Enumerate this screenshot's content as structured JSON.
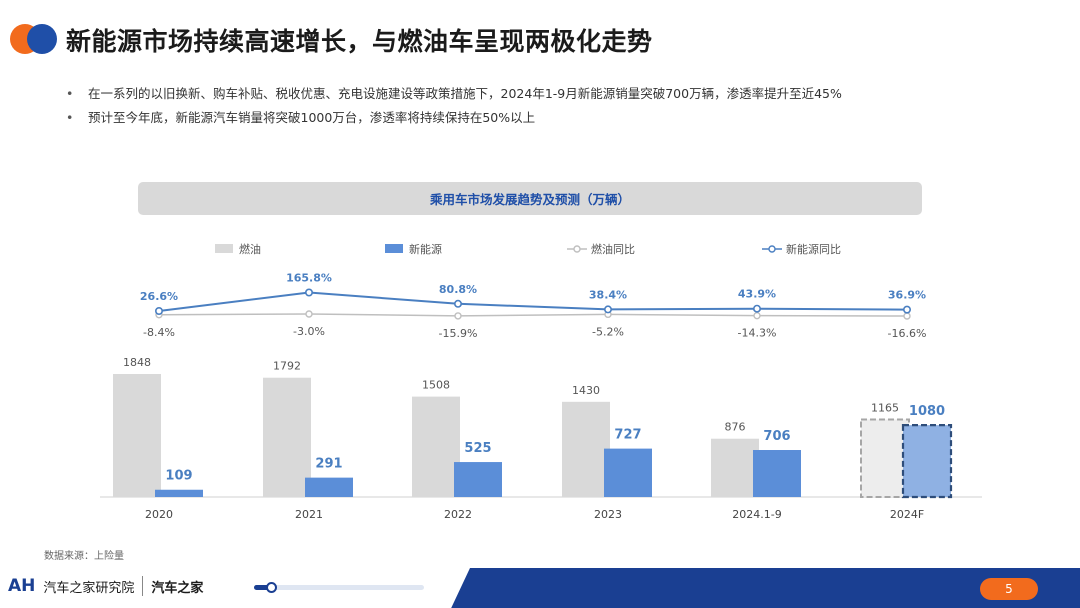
{
  "header": {
    "title": "新能源市场持续高速增长，与燃油车呈现两极化走势",
    "brand_colors": {
      "orange": "#f26b1d",
      "blue": "#1f4fa8"
    }
  },
  "bullets": [
    "在一系列的以旧换新、购车补贴、税收优惠、充电设施建设等政策措施下，2024年1-9月新能源销量突破700万辆，渗透率提升至近45%",
    "预计至今年底，新能源汽车销量将突破1000万台，渗透率将持续保持在50%以上"
  ],
  "chart_data": {
    "type": "bar",
    "title": "乘用车市场发展趋势及预测（万辆）",
    "categories": [
      "2020",
      "2021",
      "2022",
      "2023",
      "2024.1-9",
      "2024F"
    ],
    "series": [
      {
        "name": "燃油",
        "type": "bar",
        "color": "#d9d9d9",
        "values": [
          1848,
          1792,
          1508,
          1430,
          876,
          1165
        ]
      },
      {
        "name": "新能源",
        "type": "bar",
        "color": "#5b8ed8",
        "values": [
          109,
          291,
          525,
          727,
          706,
          1080
        ]
      },
      {
        "name": "燃油同比",
        "type": "line",
        "color": "#bfbfbf",
        "values": [
          -8.4,
          -3.0,
          -15.9,
          -5.2,
          -14.3,
          -16.6
        ],
        "labels": [
          "-8.4%",
          "-3.0%",
          "-15.9%",
          "-5.2%",
          "-14.3%",
          "-16.6%"
        ]
      },
      {
        "name": "新能源同比",
        "type": "line",
        "color": "#4a7fc1",
        "values": [
          26.6,
          165.8,
          80.8,
          38.4,
          43.9,
          36.9
        ],
        "labels": [
          "26.6%",
          "165.8%",
          "80.8%",
          "38.4%",
          "43.9%",
          "36.9%"
        ]
      }
    ],
    "forecast_category": "2024F",
    "legend_position": "top",
    "grid": false
  },
  "source_note": "数据来源：上险量",
  "footer": {
    "logo_mark": "AH",
    "institute": "汽车之家研究院",
    "brand": "汽车之家",
    "progress": 0.1,
    "page_number": "5"
  }
}
